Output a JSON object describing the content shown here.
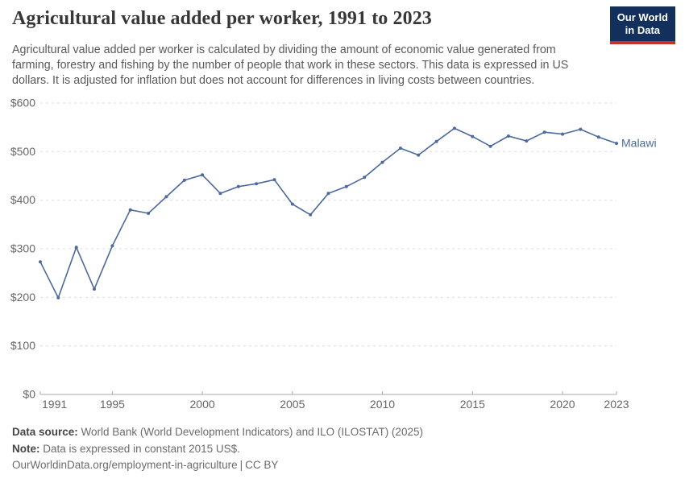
{
  "header": {
    "title": "Agricultural value added per worker, 1991 to 2023",
    "subtitle": "Agricultural value added per worker is calculated by dividing the amount of economic value generated from farming, forestry and fishing by the number of people that work in these sectors. This data is expressed in US dollars. It is adjusted for inflation but does not account for differences in living costs between countries.",
    "logo": {
      "line1": "Our World",
      "line2": "in Data"
    }
  },
  "chart_data": {
    "type": "line",
    "title": "Agricultural value added per worker, 1991 to 2023",
    "xlabel": "",
    "ylabel": "",
    "xlim": [
      1991,
      2023
    ],
    "ylim": [
      0,
      600
    ],
    "x_ticks": [
      1991,
      1995,
      2000,
      2005,
      2010,
      2015,
      2020,
      2023
    ],
    "y_ticks": [
      0,
      100,
      200,
      300,
      400,
      500,
      600
    ],
    "y_tick_prefix": "$",
    "grid": "horizontal-dashed",
    "legend_position": "end-of-line-label",
    "series": [
      {
        "name": "Malawi",
        "color": "#4c6a9c",
        "x": [
          1991,
          1992,
          1993,
          1994,
          1995,
          1996,
          1997,
          1998,
          1999,
          2000,
          2001,
          2002,
          2003,
          2004,
          2005,
          2006,
          2007,
          2008,
          2009,
          2010,
          2011,
          2012,
          2013,
          2014,
          2015,
          2016,
          2017,
          2018,
          2019,
          2020,
          2021,
          2022,
          2023
        ],
        "values": [
          273,
          199,
          303,
          217,
          306,
          380,
          373,
          407,
          441,
          452,
          414,
          428,
          434,
          442,
          392,
          370,
          414,
          428,
          447,
          478,
          507,
          493,
          521,
          548,
          531,
          511,
          532,
          522,
          540,
          536,
          546,
          530,
          517
        ]
      }
    ]
  },
  "colors": {
    "accent_line": "#4c6a9c",
    "logo_bg": "#12305b",
    "logo_bar": "#c0342c",
    "gridline": "#dcdcdc",
    "axis": "#a8a8a8",
    "axis_text": "#666666"
  },
  "footer": {
    "data_source_label": "Data source:",
    "data_source": "World Bank (World Development Indicators) and ILO (ILOSTAT) (2025)",
    "note_label": "Note:",
    "note": "Data is expressed in constant 2015 US$.",
    "link": "OurWorldinData.org/employment-in-agriculture",
    "separator": "|",
    "license": "CC BY"
  }
}
